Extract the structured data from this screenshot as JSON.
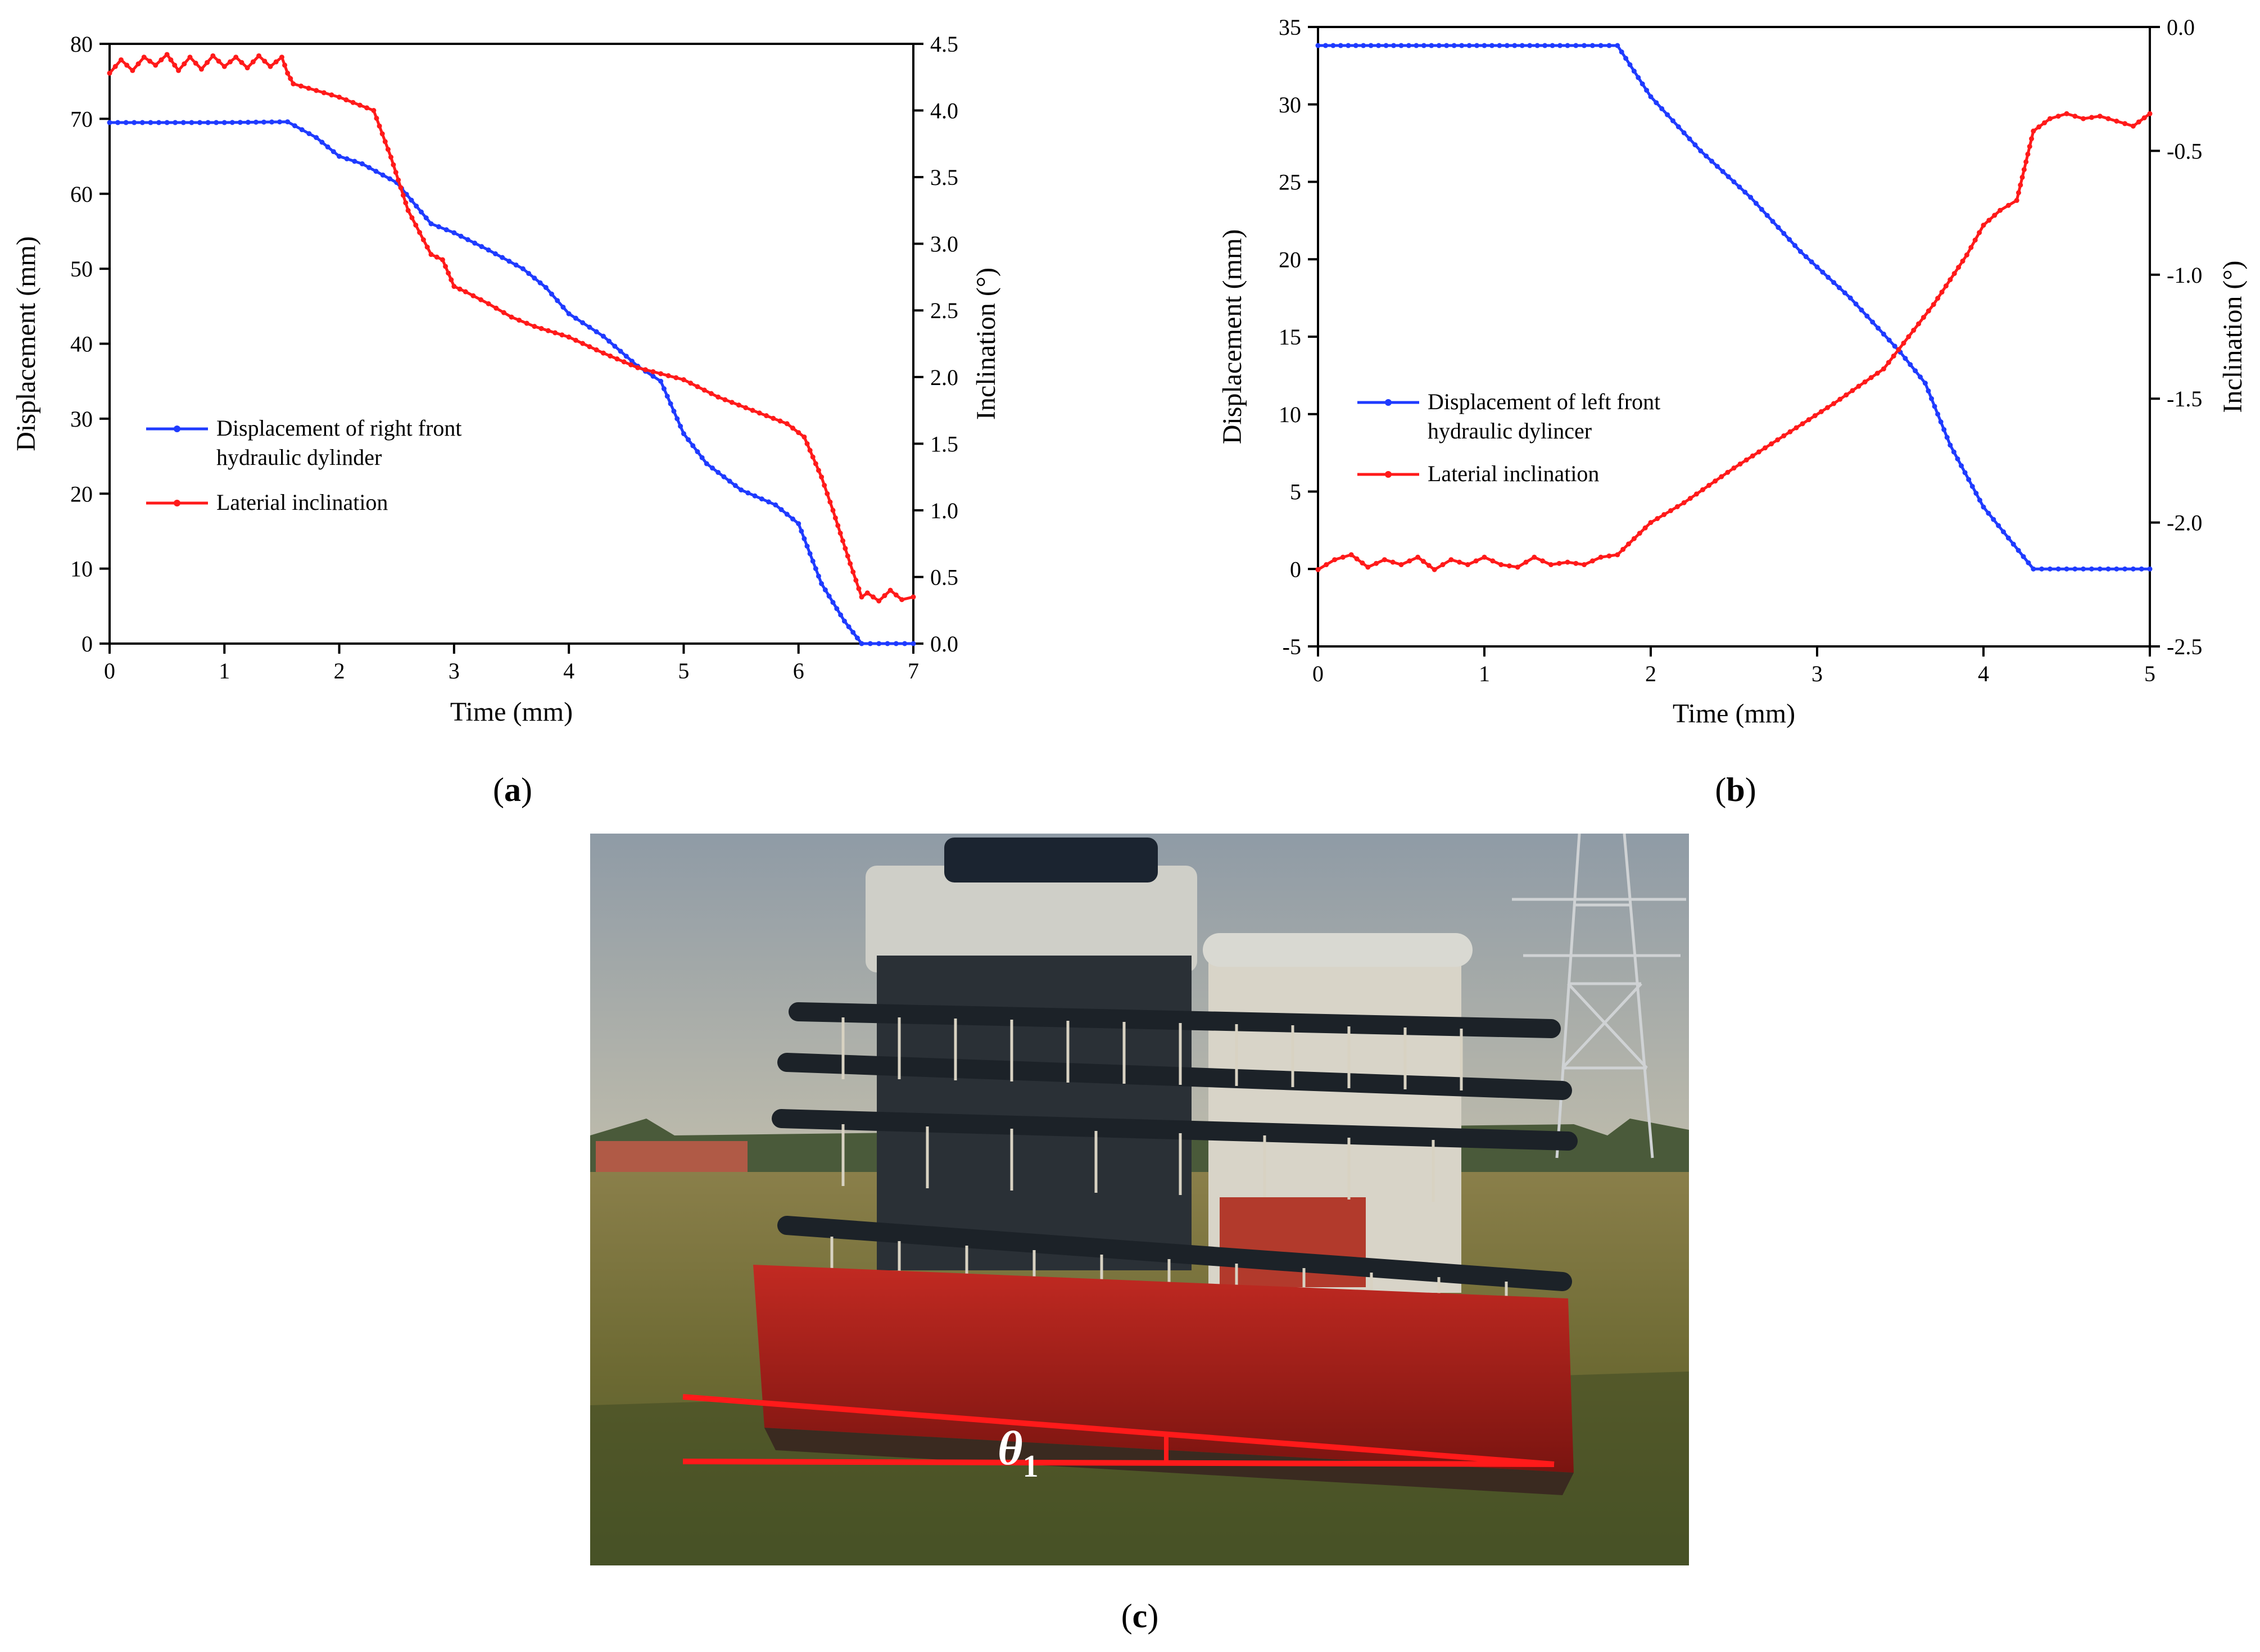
{
  "panels": {
    "a": {
      "label_open": "(",
      "label_letter": "a",
      "label_close": ")"
    },
    "b": {
      "label_open": "(",
      "label_letter": "b",
      "label_close": ")"
    },
    "c": {
      "label_open": "(",
      "label_letter": "c",
      "label_close": ")"
    }
  },
  "photo": {
    "description_icon": "combine-harvester-photo",
    "angle_symbol": "θ",
    "angle_subscript": "1",
    "colors": {
      "annotation": "#ff1a1a"
    }
  },
  "colors": {
    "blue": "#1f3bff",
    "red": "#ff1a1a"
  },
  "chart_data": [
    {
      "id": "a",
      "type": "line",
      "xlabel": "Time (mm)",
      "ylabel": "Displacement (mm)",
      "y2label": "Inclination (°)",
      "xlim": [
        0,
        7
      ],
      "ylim": [
        0,
        80
      ],
      "y2lim": [
        0,
        4.5
      ],
      "xticks": [
        "0",
        "1",
        "2",
        "3",
        "4",
        "5",
        "6",
        "7"
      ],
      "yticks": [
        "0",
        "10",
        "20",
        "30",
        "40",
        "50",
        "60",
        "70",
        "80"
      ],
      "y2ticks": [
        "0.0",
        "0.5",
        "1.0",
        "1.5",
        "2.0",
        "2.5",
        "3.0",
        "3.5",
        "4.0",
        "4.5"
      ],
      "grid": false,
      "legend_position": "lower-left",
      "series": [
        {
          "name_lines": [
            "Displacement of right front",
            "hydraulic dylinder"
          ],
          "axis": "left",
          "color": "#1f3bff",
          "x": [
            0,
            0.5,
            1.0,
            1.55,
            1.8,
            2.0,
            2.2,
            2.5,
            2.8,
            3.0,
            3.3,
            3.6,
            3.8,
            4.0,
            4.3,
            4.6,
            4.8,
            5.0,
            5.2,
            5.5,
            5.8,
            6.0,
            6.2,
            6.4,
            6.55,
            6.7,
            7.0
          ],
          "y": [
            69.5,
            69.5,
            69.5,
            69.6,
            67.5,
            65.0,
            64.0,
            61.5,
            56.0,
            54.8,
            52.5,
            50.0,
            47.5,
            44.0,
            41.0,
            37.0,
            35.0,
            28.0,
            24.0,
            20.5,
            18.5,
            16.0,
            8.0,
            3.0,
            0.0,
            0.0,
            0.0
          ]
        },
        {
          "name_lines": [
            "Laterial inclination"
          ],
          "axis": "right",
          "color": "#ff1a1a",
          "x": [
            0,
            0.1,
            0.2,
            0.3,
            0.4,
            0.5,
            0.6,
            0.7,
            0.8,
            0.9,
            1.0,
            1.1,
            1.2,
            1.3,
            1.4,
            1.5,
            1.55,
            1.6,
            1.8,
            2.0,
            2.3,
            2.45,
            2.6,
            2.8,
            2.9,
            3.0,
            3.1,
            3.3,
            3.5,
            3.7,
            4.0,
            4.3,
            4.6,
            5.0,
            5.3,
            5.6,
            5.9,
            6.05,
            6.2,
            6.3,
            6.45,
            6.55,
            6.6,
            6.7,
            6.8,
            6.9,
            7.0
          ],
          "y": [
            4.28,
            4.38,
            4.3,
            4.4,
            4.34,
            4.42,
            4.3,
            4.4,
            4.31,
            4.41,
            4.33,
            4.4,
            4.32,
            4.41,
            4.33,
            4.4,
            4.28,
            4.2,
            4.15,
            4.1,
            4.0,
            3.65,
            3.25,
            2.92,
            2.88,
            2.68,
            2.64,
            2.55,
            2.45,
            2.38,
            2.3,
            2.18,
            2.07,
            1.98,
            1.85,
            1.75,
            1.65,
            1.55,
            1.25,
            1.0,
            0.6,
            0.35,
            0.38,
            0.32,
            0.4,
            0.33,
            0.35
          ]
        }
      ]
    },
    {
      "id": "b",
      "type": "line",
      "xlabel": "Time (mm)",
      "ylabel": "Displacement (mm)",
      "y2label": "Inclination (°)",
      "xlim": [
        0,
        5
      ],
      "ylim": [
        -5,
        35
      ],
      "y2lim": [
        -2.5,
        0.0
      ],
      "xticks": [
        "0",
        "1",
        "2",
        "3",
        "4",
        "5"
      ],
      "yticks": [
        "-5",
        "0",
        "5",
        "10",
        "15",
        "20",
        "25",
        "30",
        "35"
      ],
      "y2ticks": [
        "-2.5",
        "-2.0",
        "-1.5",
        "-1.0",
        "-0.5",
        "0.0"
      ],
      "grid": false,
      "legend_position": "lower-left",
      "series": [
        {
          "name_lines": [
            "Displacement of left front",
            "hydraulic dylincer"
          ],
          "axis": "left",
          "color": "#1f3bff",
          "x": [
            0,
            0.5,
            1.0,
            1.5,
            1.8,
            2.0,
            2.3,
            2.6,
            2.9,
            3.2,
            3.5,
            3.65,
            3.8,
            4.0,
            4.3,
            4.5,
            4.75,
            5.0
          ],
          "y": [
            33.8,
            33.8,
            33.8,
            33.8,
            33.8,
            30.5,
            27.0,
            24.0,
            20.5,
            17.5,
            14.0,
            12.0,
            8.0,
            4.0,
            0.0,
            0.0,
            0.0,
            0.0
          ]
        },
        {
          "name_lines": [
            "Laterial inclination"
          ],
          "axis": "right",
          "color": "#ff1a1a",
          "x": [
            0,
            0.1,
            0.2,
            0.3,
            0.4,
            0.5,
            0.6,
            0.7,
            0.8,
            0.9,
            1.0,
            1.1,
            1.2,
            1.3,
            1.4,
            1.5,
            1.6,
            1.7,
            1.8,
            2.0,
            2.2,
            2.5,
            2.8,
            3.1,
            3.4,
            3.7,
            3.9,
            4.0,
            4.1,
            4.2,
            4.3,
            4.4,
            4.5,
            4.6,
            4.7,
            4.8,
            4.9,
            5.0
          ],
          "y": [
            -2.19,
            -2.15,
            -2.13,
            -2.18,
            -2.15,
            -2.17,
            -2.14,
            -2.19,
            -2.15,
            -2.17,
            -2.14,
            -2.17,
            -2.18,
            -2.14,
            -2.17,
            -2.16,
            -2.17,
            -2.14,
            -2.13,
            -2.0,
            -1.92,
            -1.78,
            -1.65,
            -1.52,
            -1.38,
            -1.12,
            -0.92,
            -0.8,
            -0.74,
            -0.7,
            -0.42,
            -0.37,
            -0.35,
            -0.37,
            -0.36,
            -0.38,
            -0.4,
            -0.35
          ]
        }
      ]
    }
  ]
}
